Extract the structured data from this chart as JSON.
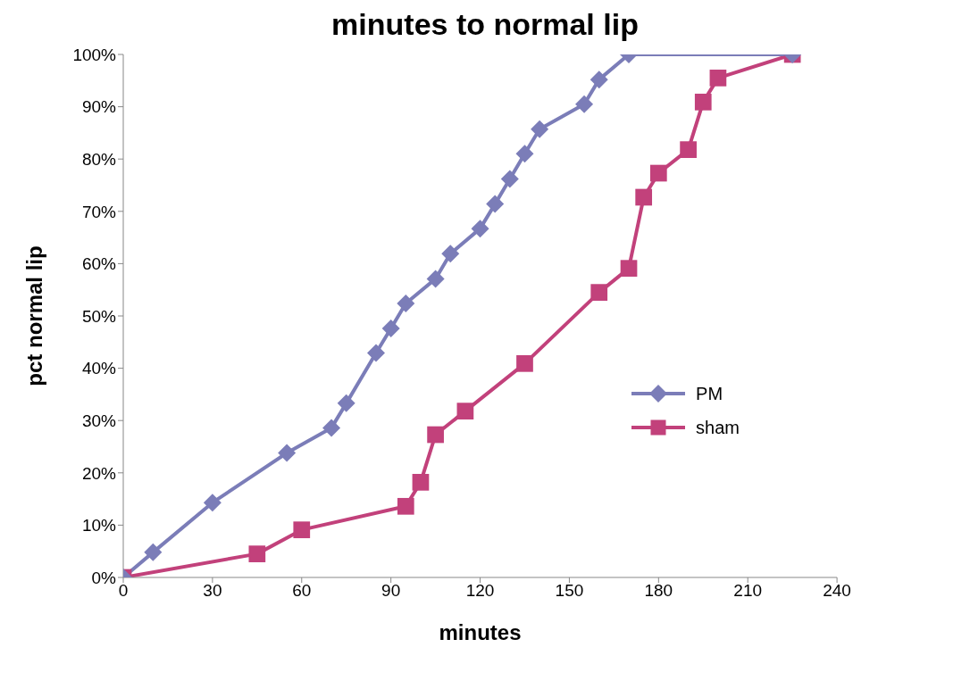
{
  "chart_data": {
    "type": "line",
    "title": "minutes to normal lip",
    "xlabel": "minutes",
    "ylabel": "pct normal lip",
    "xlim": [
      0,
      240
    ],
    "xticks": [
      0,
      30,
      60,
      90,
      120,
      150,
      180,
      210,
      240
    ],
    "ylim": [
      0,
      100
    ],
    "yticks": [
      {
        "value": 0,
        "label": "0%"
      },
      {
        "value": 10,
        "label": "10%"
      },
      {
        "value": 20,
        "label": "20%"
      },
      {
        "value": 30,
        "label": "30%"
      },
      {
        "value": 40,
        "label": "40%"
      },
      {
        "value": 50,
        "label": "50%"
      },
      {
        "value": 60,
        "label": "60%"
      },
      {
        "value": 70,
        "label": "70%"
      },
      {
        "value": 80,
        "label": "80%"
      },
      {
        "value": 90,
        "label": "90%"
      },
      {
        "value": 100,
        "label": "100%"
      }
    ],
    "grid": false,
    "legend": "right",
    "line_style": "solid",
    "series": [
      {
        "name": "PM",
        "color": "#7b7db8",
        "marker": "diamond",
        "x": [
          0,
          10,
          30,
          55,
          70,
          75,
          85,
          90,
          95,
          105,
          110,
          120,
          125,
          130,
          135,
          140,
          155,
          160,
          170,
          225
        ],
        "values": [
          0,
          4.8,
          14.3,
          23.8,
          28.6,
          33.3,
          42.9,
          47.6,
          52.4,
          57.1,
          61.9,
          66.7,
          71.4,
          76.2,
          81.0,
          85.7,
          90.5,
          95.2,
          100,
          100
        ]
      },
      {
        "name": "sham",
        "color": "#c2417b",
        "marker": "square",
        "x": [
          0,
          45,
          60,
          95,
          100,
          105,
          115,
          135,
          160,
          170,
          175,
          180,
          190,
          195,
          200,
          225
        ],
        "values": [
          0,
          4.5,
          9.1,
          13.6,
          18.2,
          27.3,
          31.8,
          40.9,
          54.5,
          59.1,
          72.7,
          77.3,
          81.8,
          90.9,
          95.5,
          100
        ]
      }
    ]
  }
}
